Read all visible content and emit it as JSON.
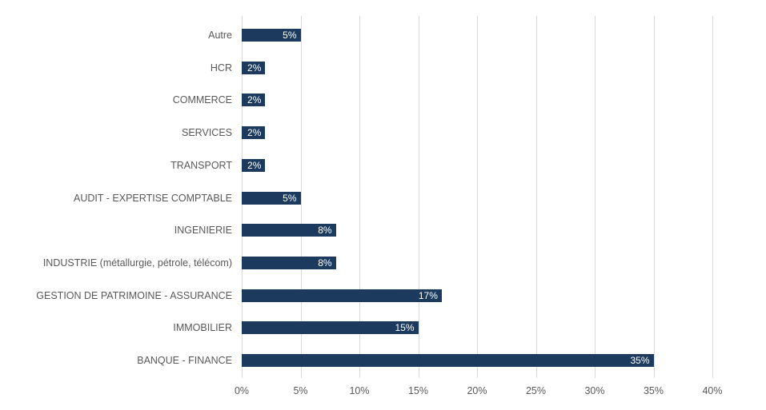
{
  "chart_data": {
    "type": "bar",
    "orientation": "horizontal",
    "title": "",
    "xlabel": "",
    "ylabel": "",
    "categories": [
      "Autre",
      "HCR",
      "COMMERCE",
      "SERVICES",
      "TRANSPORT",
      "AUDIT - EXPERTISE COMPTABLE",
      "INGENIERIE",
      "INDUSTRIE (métallurgie, pétrole, télécom)",
      "GESTION DE PATRIMOINE - ASSURANCE",
      "IMMOBILIER",
      "BANQUE - FINANCE"
    ],
    "values": [
      5,
      2,
      2,
      2,
      2,
      5,
      8,
      8,
      17,
      15,
      35
    ],
    "value_labels": [
      "5%",
      "2%",
      "2%",
      "2%",
      "2%",
      "5%",
      "8%",
      "8%",
      "17%",
      "15%",
      "35%"
    ],
    "x_ticks": [
      "0%",
      "5%",
      "10%",
      "15%",
      "20%",
      "25%",
      "30%",
      "35%",
      "40%"
    ],
    "x_tick_values": [
      0,
      5,
      10,
      15,
      20,
      25,
      30,
      35,
      40
    ],
    "xlim": [
      0,
      40
    ],
    "grid": "vertical",
    "legend": "none",
    "colors": {
      "bar": "#1c3a5e",
      "axis_text": "#595959",
      "gridline": "#d9d9d9",
      "value_text": "#ffffff",
      "background": "#ffffff"
    }
  }
}
